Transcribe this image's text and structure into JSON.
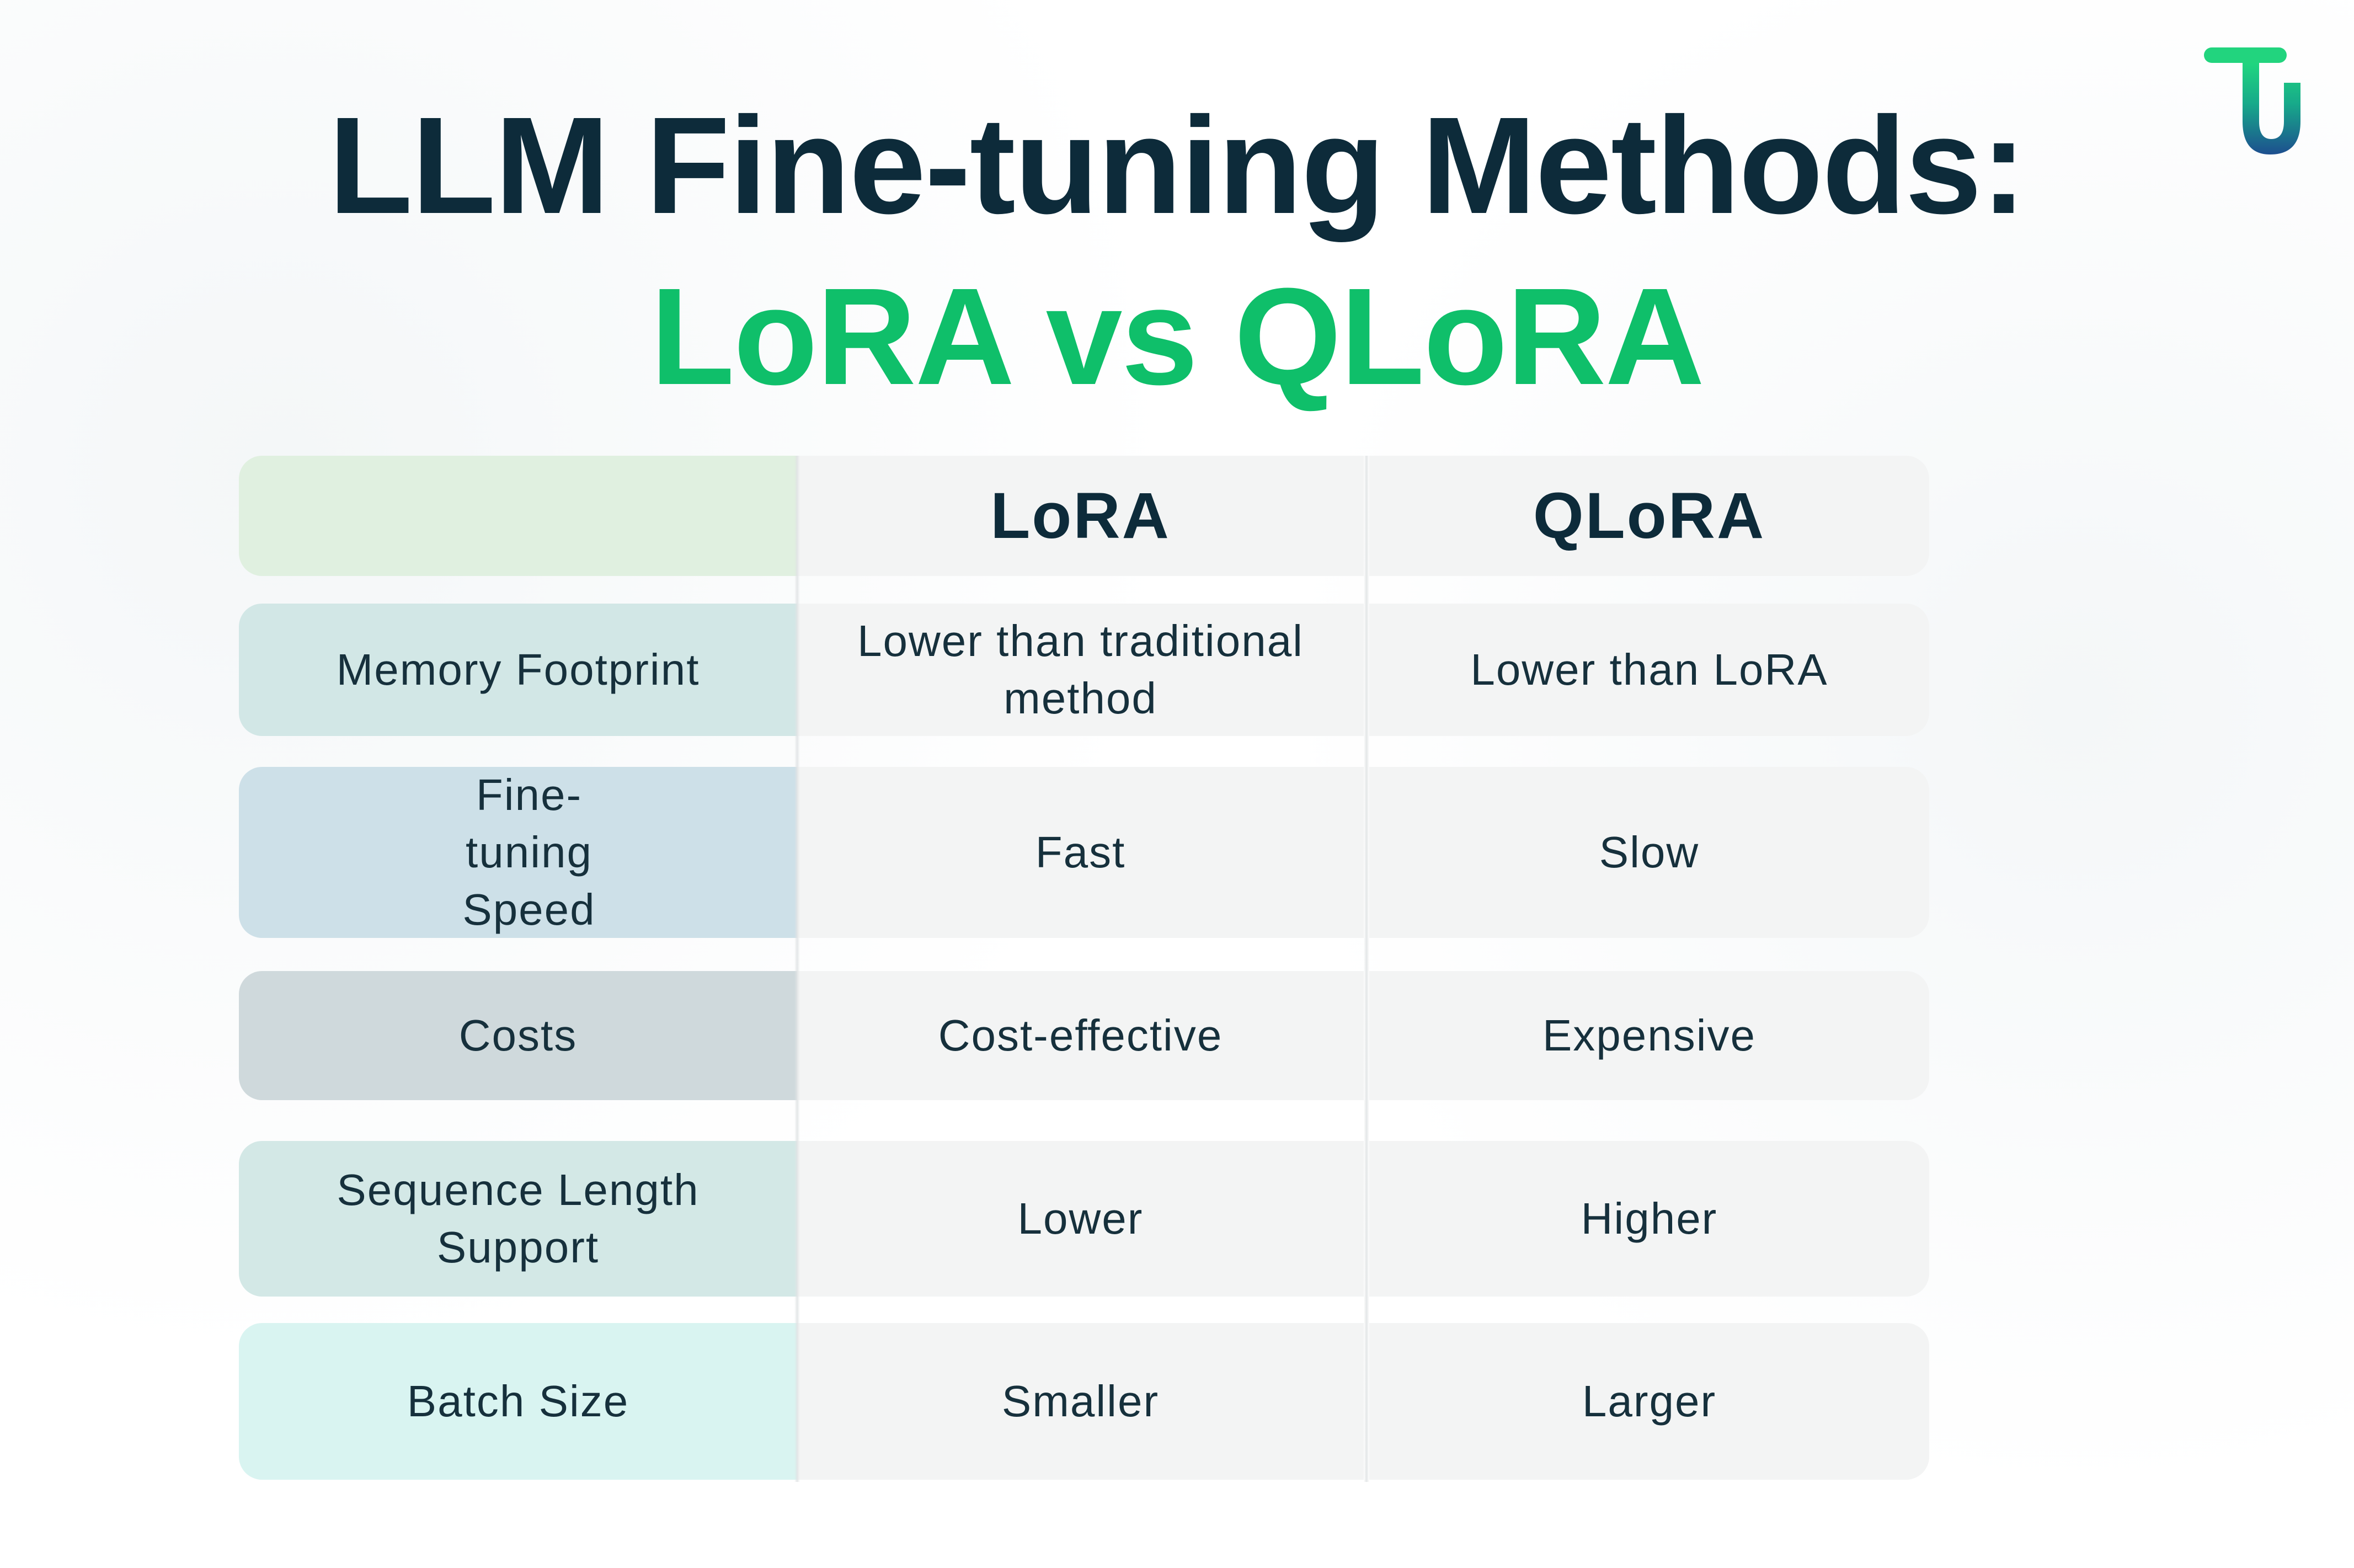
{
  "title": {
    "line1": "LLM Fine-tuning Methods:",
    "line2": "LoRA vs QLoRA"
  },
  "colors": {
    "title_dark": "#0d2b3a",
    "title_accent": "#0fbf6a",
    "logo_green": "#1ad07a",
    "logo_blue": "#1f4e8c"
  },
  "logo": {
    "icon": "tu-logo-icon"
  },
  "table": {
    "header": {
      "blank": "",
      "lora": "LoRA",
      "qlora": "QLoRA"
    },
    "rows": [
      {
        "label": "Memory Footprint",
        "lora": "Lower than traditional method",
        "qlora": "Lower than LoRA",
        "color": "#d2e7e6"
      },
      {
        "label": "Fine-tuning Speed",
        "lora": "Fast",
        "qlora": "Slow",
        "color": "#cde0e8"
      },
      {
        "label": "Costs",
        "lora": "Cost-effective",
        "qlora": "Expensive",
        "color": "#cfd9dc"
      },
      {
        "label": "Sequence Length Support",
        "lora": "Lower",
        "qlora": "Higher",
        "color": "#d3e8e6"
      },
      {
        "label": "Batch Size",
        "lora": "Smaller",
        "qlora": "Larger",
        "color": "#d9f4f1"
      }
    ]
  }
}
